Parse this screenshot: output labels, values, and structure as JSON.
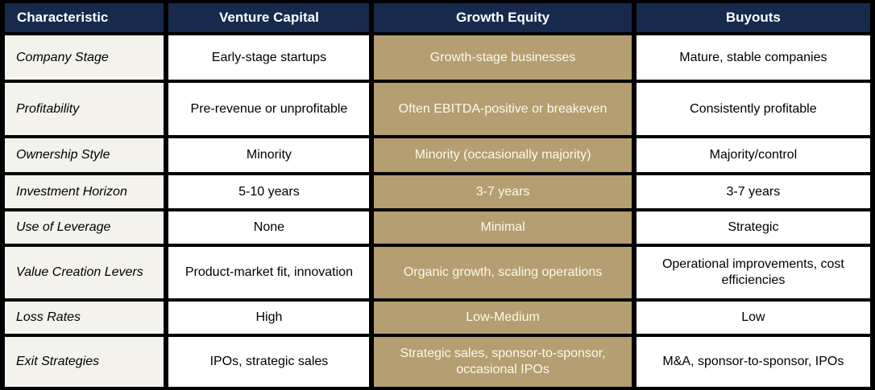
{
  "table": {
    "headers": {
      "characteristic": "Characteristic",
      "venture_capital": "Venture Capital",
      "growth_equity": "Growth Equity",
      "buyouts": "Buyouts"
    },
    "rows": [
      {
        "characteristic": "Company Stage",
        "venture_capital": "Early-stage startups",
        "growth_equity": "Growth-stage businesses",
        "buyouts": "Mature, stable companies"
      },
      {
        "characteristic": "Profitability",
        "venture_capital": "Pre-revenue or unprofitable",
        "growth_equity": "Often EBITDA-positive or breakeven",
        "buyouts": "Consistently profitable"
      },
      {
        "characteristic": "Ownership Style",
        "venture_capital": "Minority",
        "growth_equity": "Minority (occasionally majority)",
        "buyouts": "Majority/control"
      },
      {
        "characteristic": "Investment Horizon",
        "venture_capital": "5-10 years",
        "growth_equity": "3-7 years",
        "buyouts": "3-7 years"
      },
      {
        "characteristic": "Use of Leverage",
        "venture_capital": "None",
        "growth_equity": "Minimal",
        "buyouts": "Strategic"
      },
      {
        "characteristic": "Value Creation Levers",
        "venture_capital": "Product-market fit, innovation",
        "growth_equity": "Organic growth, scaling operations",
        "buyouts": "Operational improvements, cost efficiencies"
      },
      {
        "characteristic": "Loss Rates",
        "venture_capital": "High",
        "growth_equity": "Low-Medium",
        "buyouts": "Low"
      },
      {
        "characteristic": "Exit Strategies",
        "venture_capital": "IPOs, strategic sales",
        "growth_equity": "Strategic sales, sponsor-to-sponsor, occasional IPOs",
        "buyouts": "M&A, sponsor-to-sponsor, IPOs"
      }
    ],
    "colors": {
      "header_bg": "#172a4d",
      "header_text": "#ffffff",
      "highlight_bg": "#b59e71",
      "highlight_text": "#fbf9ee",
      "row_label_bg": "#f3f2ec",
      "cell_bg": "#ffffff",
      "border": "#000000",
      "body_text": "#000000"
    }
  }
}
